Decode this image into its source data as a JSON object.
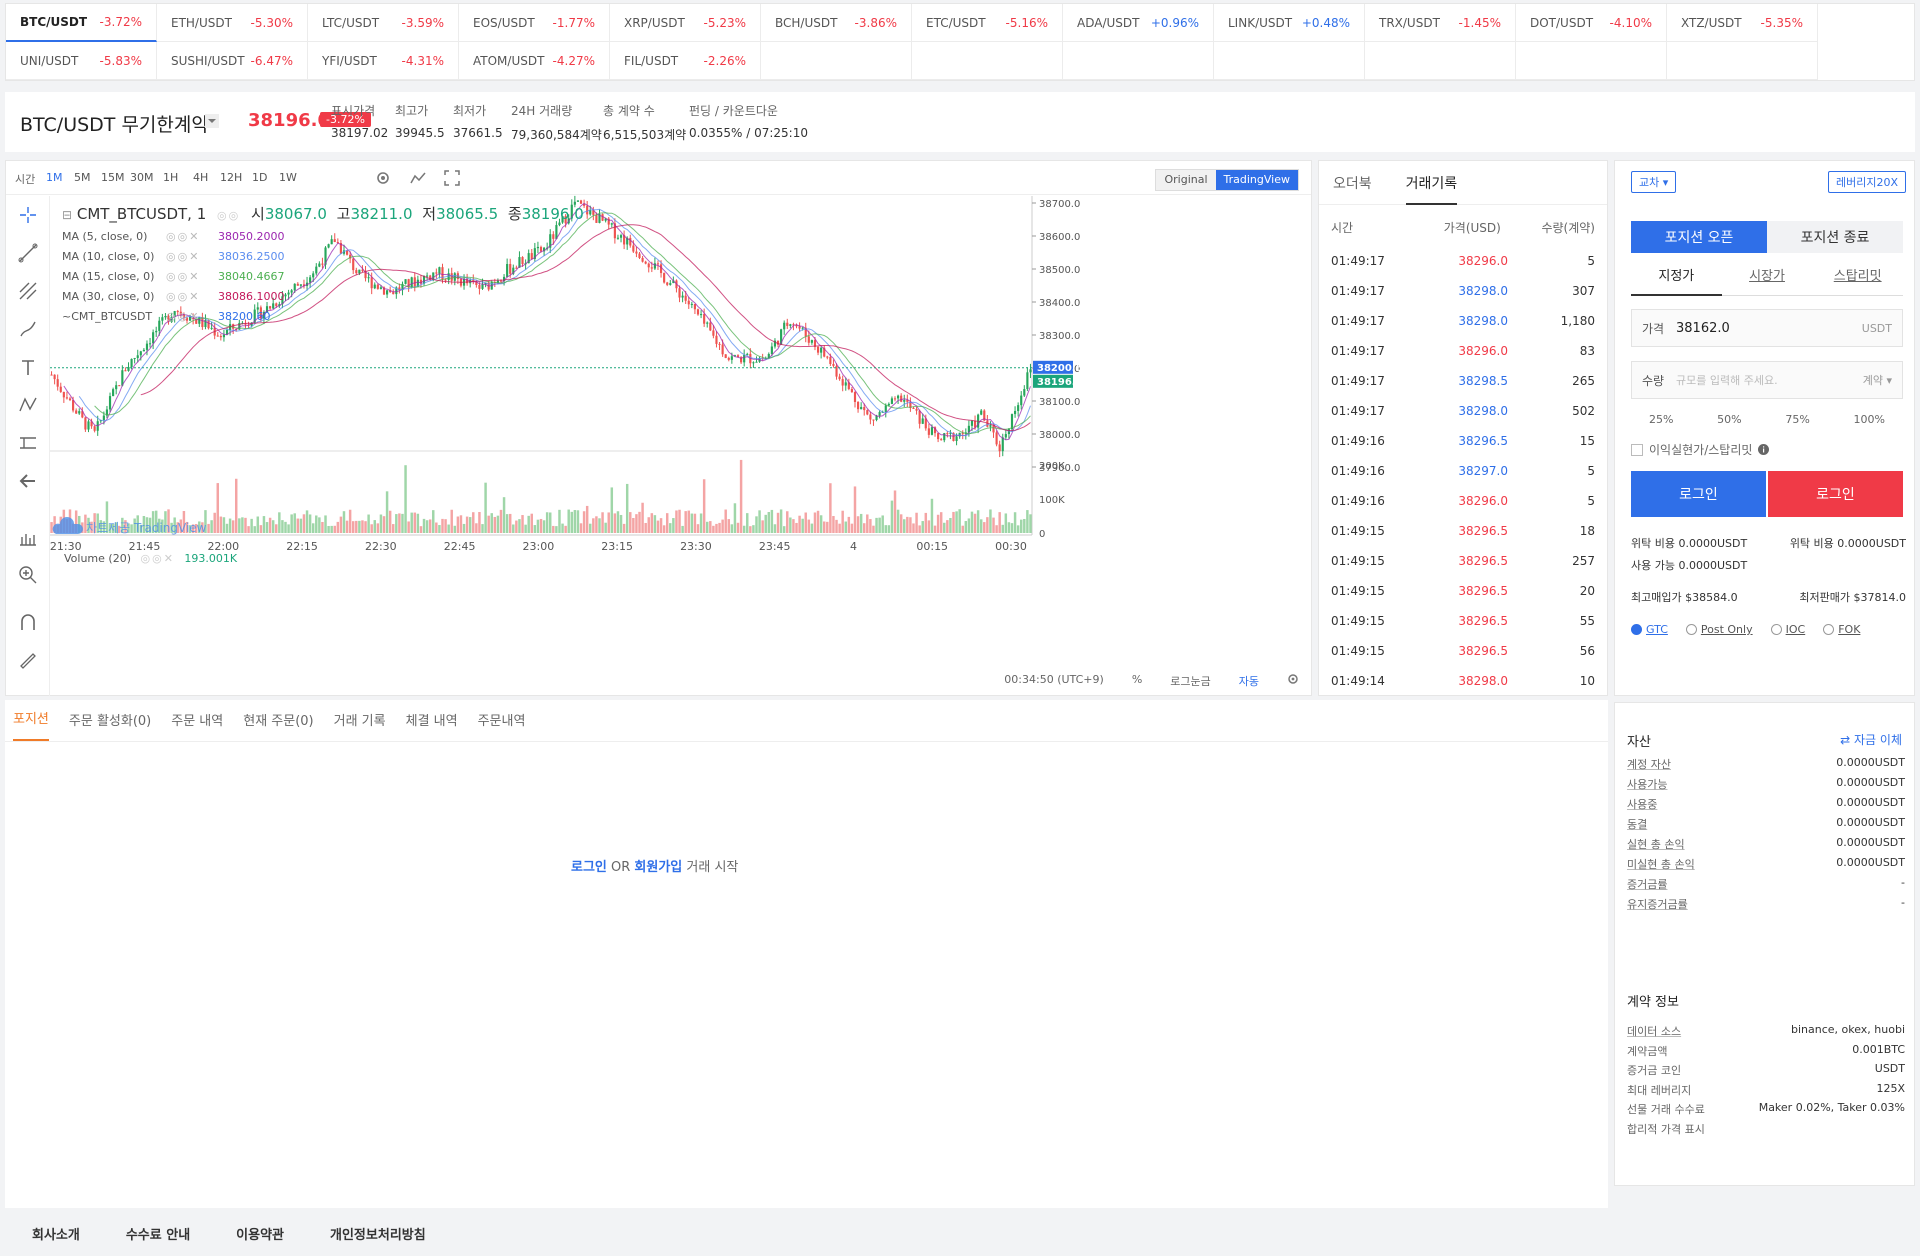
{
  "ticker": {
    "row1": [
      {
        "symbol": "BTC/USDT",
        "change": "-3.72%",
        "dir": "down",
        "active": true
      },
      {
        "symbol": "ETH/USDT",
        "change": "-5.30%",
        "dir": "down"
      },
      {
        "symbol": "LTC/USDT",
        "change": "-3.59%",
        "dir": "down"
      },
      {
        "symbol": "EOS/USDT",
        "change": "-1.77%",
        "dir": "down"
      },
      {
        "symbol": "XRP/USDT",
        "change": "-5.23%",
        "dir": "down"
      },
      {
        "symbol": "BCH/USDT",
        "change": "-3.86%",
        "dir": "down"
      },
      {
        "symbol": "ETC/USDT",
        "change": "-5.16%",
        "dir": "down"
      },
      {
        "symbol": "ADA/USDT",
        "change": "+0.96%",
        "dir": "up"
      },
      {
        "symbol": "LINK/USDT",
        "change": "+0.48%",
        "dir": "up"
      },
      {
        "symbol": "TRX/USDT",
        "change": "-1.45%",
        "dir": "down"
      },
      {
        "symbol": "DOT/USDT",
        "change": "-4.10%",
        "dir": "down"
      },
      {
        "symbol": "XTZ/USDT",
        "change": "-5.35%",
        "dir": "down"
      }
    ],
    "row2": [
      {
        "symbol": "UNI/USDT",
        "change": "-5.83%",
        "dir": "down"
      },
      {
        "symbol": "SUSHI/USDT",
        "change": "-6.47%",
        "dir": "down"
      },
      {
        "symbol": "YFI/USDT",
        "change": "-4.31%",
        "dir": "down"
      },
      {
        "symbol": "ATOM/USDT",
        "change": "-4.27%",
        "dir": "down"
      },
      {
        "symbol": "FIL/USDT",
        "change": "-2.26%",
        "dir": "down"
      }
    ]
  },
  "header": {
    "pair": "BTC/USDT 무기한계약",
    "last_price": "38196.0",
    "change_pct": "-3.72%",
    "stats": [
      {
        "label": "표시가격",
        "value": "38197.02",
        "blue": true
      },
      {
        "label": "최고가",
        "value": "39945.5"
      },
      {
        "label": "최저가",
        "value": "37661.5"
      },
      {
        "label": "24H 거래량",
        "value": "79,360,584계약"
      },
      {
        "label": "총 계약 수",
        "value": "6,515,503계약"
      },
      {
        "label": "펀딩 / 카운트다운",
        "value": "0.0355% / 07:25:10"
      }
    ]
  },
  "chart": {
    "time_label": "시간",
    "timeframes": [
      "1M",
      "5M",
      "15M",
      "30M",
      "1H",
      "4H",
      "12H",
      "1D",
      "1W"
    ],
    "active_tf": "1M",
    "view_original": "Original",
    "view_tv": "TradingView",
    "legend_main": {
      "symbol": "CMT_BTCUSDT, 1",
      "o_label": "시",
      "o": "38067.0",
      "h_label": "고",
      "h": "38211.0",
      "l_label": "저",
      "l": "38065.5",
      "c_label": "종",
      "c": "38196.0"
    },
    "ma": [
      {
        "name": "MA (5, close, 0)",
        "value": "38050.2000",
        "color": "#9c27b0"
      },
      {
        "name": "MA (10, close, 0)",
        "value": "38036.2500",
        "color": "#5b8def"
      },
      {
        "name": "MA (15, close, 0)",
        "value": "38040.4667",
        "color": "#4caf50"
      },
      {
        "name": "MA (30, close, 0)",
        "value": "38086.1000",
        "color": "#c2185b"
      },
      {
        "name": "~CMT_BTCUSDT",
        "value": "38200.60",
        "color": "#2f6fe8"
      }
    ],
    "volume_label": "Volume (20)",
    "volume_value": "193.001K",
    "watermark": "차트제공 TradingView",
    "price_axis": [
      "38700.0",
      "38600.0",
      "38500.0",
      "38400.0",
      "38300.0",
      "38200.0",
      "38100.0",
      "38000.0",
      "37900.0"
    ],
    "vol_axis": [
      "200K",
      "100K",
      "0"
    ],
    "time_axis": [
      "21:30",
      "21:45",
      "22:00",
      "22:15",
      "22:30",
      "22:45",
      "23:00",
      "23:15",
      "23:30",
      "23:45",
      "4",
      "00:15",
      "00:30"
    ],
    "price_tag_1": "38200.6",
    "price_tag_2": "38196.0",
    "footer_time": "00:34:50 (UTC+9)",
    "footer_pct": "%",
    "footer_log": "로그눈금",
    "footer_auto": "자동"
  },
  "chart_data": {
    "type": "candlestick",
    "interval": "1M",
    "x_range": [
      "21:27",
      "00:34"
    ],
    "y_range": [
      37900,
      38700
    ],
    "volume_range": [
      0,
      200000
    ],
    "last_close": 38196.0
  },
  "trades": {
    "tab_orderbook": "오더북",
    "tab_history": "거래기록",
    "col_time": "시간",
    "col_price": "가격(USD)",
    "col_qty": "수량(계약)",
    "rows": [
      {
        "time": "01:49:17",
        "price": "38296.0",
        "qty": "5",
        "side": "sell"
      },
      {
        "time": "01:49:17",
        "price": "38298.0",
        "qty": "307",
        "side": "buy"
      },
      {
        "time": "01:49:17",
        "price": "38298.0",
        "qty": "1,180",
        "side": "buy"
      },
      {
        "time": "01:49:17",
        "price": "38296.0",
        "qty": "83",
        "side": "sell"
      },
      {
        "time": "01:49:17",
        "price": "38298.5",
        "qty": "265",
        "side": "buy"
      },
      {
        "time": "01:49:17",
        "price": "38298.0",
        "qty": "502",
        "side": "buy"
      },
      {
        "time": "01:49:16",
        "price": "38296.5",
        "qty": "15",
        "side": "buy"
      },
      {
        "time": "01:49:16",
        "price": "38297.0",
        "qty": "5",
        "side": "buy"
      },
      {
        "time": "01:49:16",
        "price": "38296.0",
        "qty": "5",
        "side": "sell"
      },
      {
        "time": "01:49:15",
        "price": "38296.5",
        "qty": "18",
        "side": "sell"
      },
      {
        "time": "01:49:15",
        "price": "38296.5",
        "qty": "257",
        "side": "sell"
      },
      {
        "time": "01:49:15",
        "price": "38296.5",
        "qty": "20",
        "side": "sell"
      },
      {
        "time": "01:49:15",
        "price": "38296.5",
        "qty": "55",
        "side": "sell"
      },
      {
        "time": "01:49:15",
        "price": "38296.5",
        "qty": "56",
        "side": "sell"
      },
      {
        "time": "01:49:14",
        "price": "38298.0",
        "qty": "10",
        "side": "sell"
      }
    ]
  },
  "order": {
    "margin_mode": "교차",
    "leverage": "레버리지20X",
    "open": "포지션 오픈",
    "close": "포지션 종료",
    "types": [
      "지정가",
      "시장가",
      "스탑리밋"
    ],
    "price_label": "가격",
    "price_value": "38162.0",
    "price_unit": "USDT",
    "qty_label": "수량",
    "qty_placeholder": "규모를 입력해 주세요.",
    "qty_unit": "계약",
    "pcts": [
      "25%",
      "50%",
      "75%",
      "100%"
    ],
    "tpsl": "이익실현가/스탑리밋",
    "login_buy": "로그인",
    "login_sell": "로그인",
    "cost_buy": "위탁 비용 0.0000USDT",
    "cost_sell": "위탁 비용 0.0000USDT",
    "available": "사용 가능 0.0000USDT",
    "max_buy": "최고매입가 $38584.0",
    "min_sell": "최저판매가 $37814.0",
    "tif": [
      "GTC",
      "Post Only",
      "IOC",
      "FOK"
    ]
  },
  "positions": {
    "tabs": [
      "포지션",
      "주문 활성화(0)",
      "주문 내역",
      "현재 주문(0)",
      "거래 기록",
      "체결 내역",
      "주문내역"
    ],
    "login": "로그인",
    "or": " OR ",
    "signup": "회원가입",
    "start": " 거래 시작"
  },
  "assets": {
    "title": "자산",
    "transfer": "자금 이체",
    "rows": [
      {
        "k": "계정 자산",
        "v": "0.0000USDT"
      },
      {
        "k": "사용가능",
        "v": "0.0000USDT"
      },
      {
        "k": "사용중",
        "v": "0.0000USDT"
      },
      {
        "k": "동결",
        "v": "0.0000USDT"
      },
      {
        "k": "실현 총 손익",
        "v": "0.0000USDT"
      },
      {
        "k": "미실현 총 손익",
        "v": "0.0000USDT"
      },
      {
        "k": "증거금률",
        "v": "-"
      },
      {
        "k": "유지증거금률",
        "v": "-"
      }
    ],
    "contract_title": "계약 정보",
    "contract_rows": [
      {
        "k": "데이터 소스",
        "v": "binance, okex, huobi"
      },
      {
        "k": "계약금액",
        "v": "0.001BTC"
      },
      {
        "k": "증거금 코인",
        "v": "USDT"
      },
      {
        "k": "최대 레버리지",
        "v": "125X"
      },
      {
        "k": "선물 거래 수수료",
        "v": "Maker 0.02%, Taker 0.03%"
      },
      {
        "k": "합리적 가격 표시",
        "v": ""
      }
    ]
  },
  "footer": [
    "회사소개",
    "수수료 안내",
    "이용약관",
    "개인정보처리방침"
  ]
}
